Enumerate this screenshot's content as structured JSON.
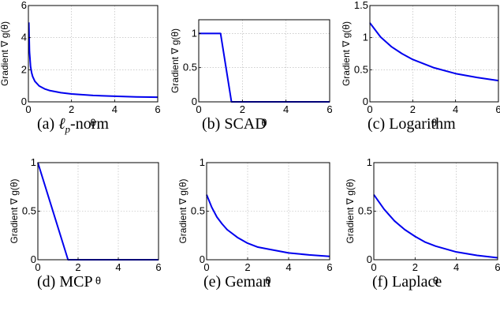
{
  "figure": {
    "captions": [
      {
        "label": "(a)",
        "pre": "ℓ",
        "sub": "p",
        "text": "-norm"
      },
      {
        "label": "(b)",
        "pre": "",
        "sub": "",
        "text": "SCAD"
      },
      {
        "label": "(c)",
        "pre": "",
        "sub": "",
        "text": "Logarithm"
      },
      {
        "label": "(d)",
        "pre": "",
        "sub": "",
        "text": "MCP"
      },
      {
        "label": "(e)",
        "pre": "",
        "sub": "",
        "text": "Geman"
      },
      {
        "label": "(f)",
        "pre": "",
        "sub": "",
        "text": "Laplace"
      }
    ]
  },
  "chart_data": [
    {
      "type": "line",
      "xlabel": "θ",
      "ylabel": "Gradient ∇ g(θ)",
      "xlim": [
        0,
        6
      ],
      "ylim": [
        0,
        6
      ],
      "xticks": [
        "0",
        "2",
        "4",
        "6"
      ],
      "yticks": [
        "0",
        "2",
        "4",
        "6"
      ],
      "grid": true,
      "color": "#0000ee",
      "x": [
        0.02,
        0.05,
        0.1,
        0.15,
        0.2,
        0.3,
        0.5,
        0.75,
        1,
        1.5,
        2,
        3,
        4,
        5,
        6
      ],
      "y": [
        4.95,
        3.13,
        2.21,
        1.81,
        1.57,
        1.28,
        0.99,
        0.81,
        0.7,
        0.57,
        0.49,
        0.4,
        0.35,
        0.31,
        0.29
      ]
    },
    {
      "type": "line",
      "xlabel": "θ",
      "ylabel": "Gradient ∇ g(θ)",
      "xlim": [
        0,
        6
      ],
      "ylim": [
        0,
        1.2
      ],
      "xticks": [
        "0",
        "2",
        "4",
        "6"
      ],
      "yticks": [
        "0",
        "0.5",
        "1"
      ],
      "grid": true,
      "color": "#0000ee",
      "x": [
        0,
        1,
        1.5,
        6
      ],
      "y": [
        1,
        1,
        0,
        0
      ]
    },
    {
      "type": "line",
      "xlabel": "θ",
      "ylabel": "Gradient ∇ g(θ)",
      "xlim": [
        0,
        6
      ],
      "ylim": [
        0,
        1.5
      ],
      "xticks": [
        "0",
        "2",
        "4",
        "6"
      ],
      "yticks": [
        "0",
        "0.5",
        "1",
        "1.5"
      ],
      "grid": true,
      "color": "#0000ee",
      "x": [
        0,
        0.5,
        1,
        1.5,
        2,
        3,
        4,
        5,
        6
      ],
      "y": [
        1.23,
        1.01,
        0.86,
        0.75,
        0.66,
        0.53,
        0.44,
        0.38,
        0.33
      ]
    },
    {
      "type": "line",
      "xlabel": "θ",
      "ylabel": "Gradient ∇ g(θ)",
      "xlim": [
        0,
        6
      ],
      "ylim": [
        0,
        1
      ],
      "xticks": [
        "0",
        "2",
        "4",
        "6"
      ],
      "yticks": [
        "0",
        "0.5",
        "1"
      ],
      "grid": true,
      "color": "#0000ee",
      "x": [
        0,
        1.5,
        6
      ],
      "y": [
        1,
        0,
        0
      ]
    },
    {
      "type": "line",
      "xlabel": "θ",
      "ylabel": "Gradient ∇ g(θ)",
      "xlim": [
        0,
        6
      ],
      "ylim": [
        0,
        1
      ],
      "xticks": [
        "0",
        "2",
        "4",
        "6"
      ],
      "yticks": [
        "0",
        "0.5",
        "1"
      ],
      "grid": true,
      "color": "#0000ee",
      "x": [
        0,
        0.25,
        0.5,
        0.75,
        1,
        1.5,
        2,
        2.5,
        3,
        4,
        5,
        6
      ],
      "y": [
        0.67,
        0.54,
        0.44,
        0.37,
        0.31,
        0.23,
        0.17,
        0.13,
        0.11,
        0.07,
        0.05,
        0.035
      ]
    },
    {
      "type": "line",
      "xlabel": "θ",
      "ylabel": "Gradient ∇ g(θ)",
      "xlim": [
        0,
        6
      ],
      "ylim": [
        0,
        1
      ],
      "xticks": [
        "0",
        "2",
        "4",
        "6"
      ],
      "yticks": [
        "0",
        "0.5",
        "1"
      ],
      "grid": true,
      "color": "#0000ee",
      "x": [
        0,
        0.5,
        1,
        1.5,
        2,
        2.5,
        3,
        4,
        5,
        6
      ],
      "y": [
        0.67,
        0.52,
        0.4,
        0.31,
        0.24,
        0.18,
        0.14,
        0.08,
        0.045,
        0.02
      ]
    }
  ]
}
